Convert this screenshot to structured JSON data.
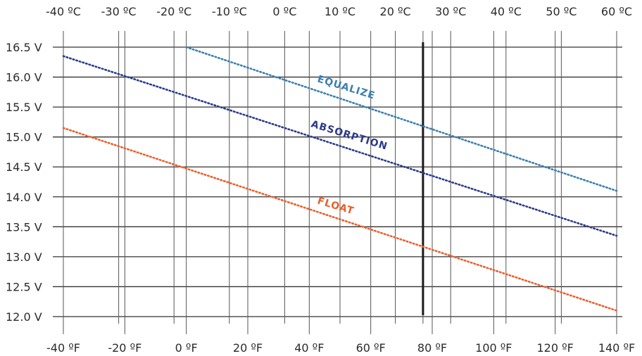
{
  "chart_data": {
    "type": "line",
    "title": "",
    "xlabel": "",
    "ylabel": "",
    "x_unit": "°F",
    "xlim": [
      -40,
      140
    ],
    "ylim": [
      12.0,
      16.5
    ],
    "grid": true,
    "y_ticks": [
      {
        "value": 16.5,
        "label": "16.5 V"
      },
      {
        "value": 16.0,
        "label": "16.0 V"
      },
      {
        "value": 15.5,
        "label": "15.5 V"
      },
      {
        "value": 15.0,
        "label": "15.0 V"
      },
      {
        "value": 14.5,
        "label": "14.5 V"
      },
      {
        "value": 14.0,
        "label": "14.0 V"
      },
      {
        "value": 13.5,
        "label": "13.5 V"
      },
      {
        "value": 13.0,
        "label": "13.0 V"
      },
      {
        "value": 12.5,
        "label": "12.5 V"
      },
      {
        "value": 12.0,
        "label": "12.0 V"
      }
    ],
    "x_ticks_f": [
      {
        "value": -40,
        "label": "-40 ºF"
      },
      {
        "value": -20,
        "label": "-20 ºF"
      },
      {
        "value": 0,
        "label": "0 ºF"
      },
      {
        "value": 20,
        "label": "20 ºF"
      },
      {
        "value": 40,
        "label": "40 ºF"
      },
      {
        "value": 60,
        "label": "60 ºF"
      },
      {
        "value": 80,
        "label": "80 ºF"
      },
      {
        "value": 100,
        "label": "100 ºF"
      },
      {
        "value": 120,
        "label": "120 ºF"
      },
      {
        "value": 140,
        "label": "140 ºF"
      }
    ],
    "x_ticks_c": [
      {
        "value": -40,
        "label": "-40 ºC"
      },
      {
        "value": -30,
        "label": "-30 ºC"
      },
      {
        "value": -20,
        "label": "-20 ºC"
      },
      {
        "value": -10,
        "label": "-10 ºC"
      },
      {
        "value": 0,
        "label": "0 ºC"
      },
      {
        "value": 10,
        "label": "10 ºC"
      },
      {
        "value": 20,
        "label": "20 ºC"
      },
      {
        "value": 25,
        "label": ""
      },
      {
        "value": 30,
        "label": "30 ºC"
      },
      {
        "value": 40,
        "label": "40 ºC"
      },
      {
        "value": 50,
        "label": "50 ºC"
      },
      {
        "value": 60,
        "label": "60 ºC"
      }
    ],
    "reference_line": {
      "value_f": 77,
      "value_c": 25
    },
    "series": [
      {
        "name": "EQUALIZE",
        "color": "#3a7fb0",
        "x": [
          0,
          140
        ],
        "y": [
          16.5,
          14.1
        ]
      },
      {
        "name": "ABSORPTION",
        "color": "#2b3a8c",
        "x": [
          -40,
          140
        ],
        "y": [
          16.35,
          13.35
        ]
      },
      {
        "name": "FLOAT",
        "color": "#e8602c",
        "x": [
          -40,
          140
        ],
        "y": [
          15.15,
          12.1
        ]
      }
    ]
  }
}
